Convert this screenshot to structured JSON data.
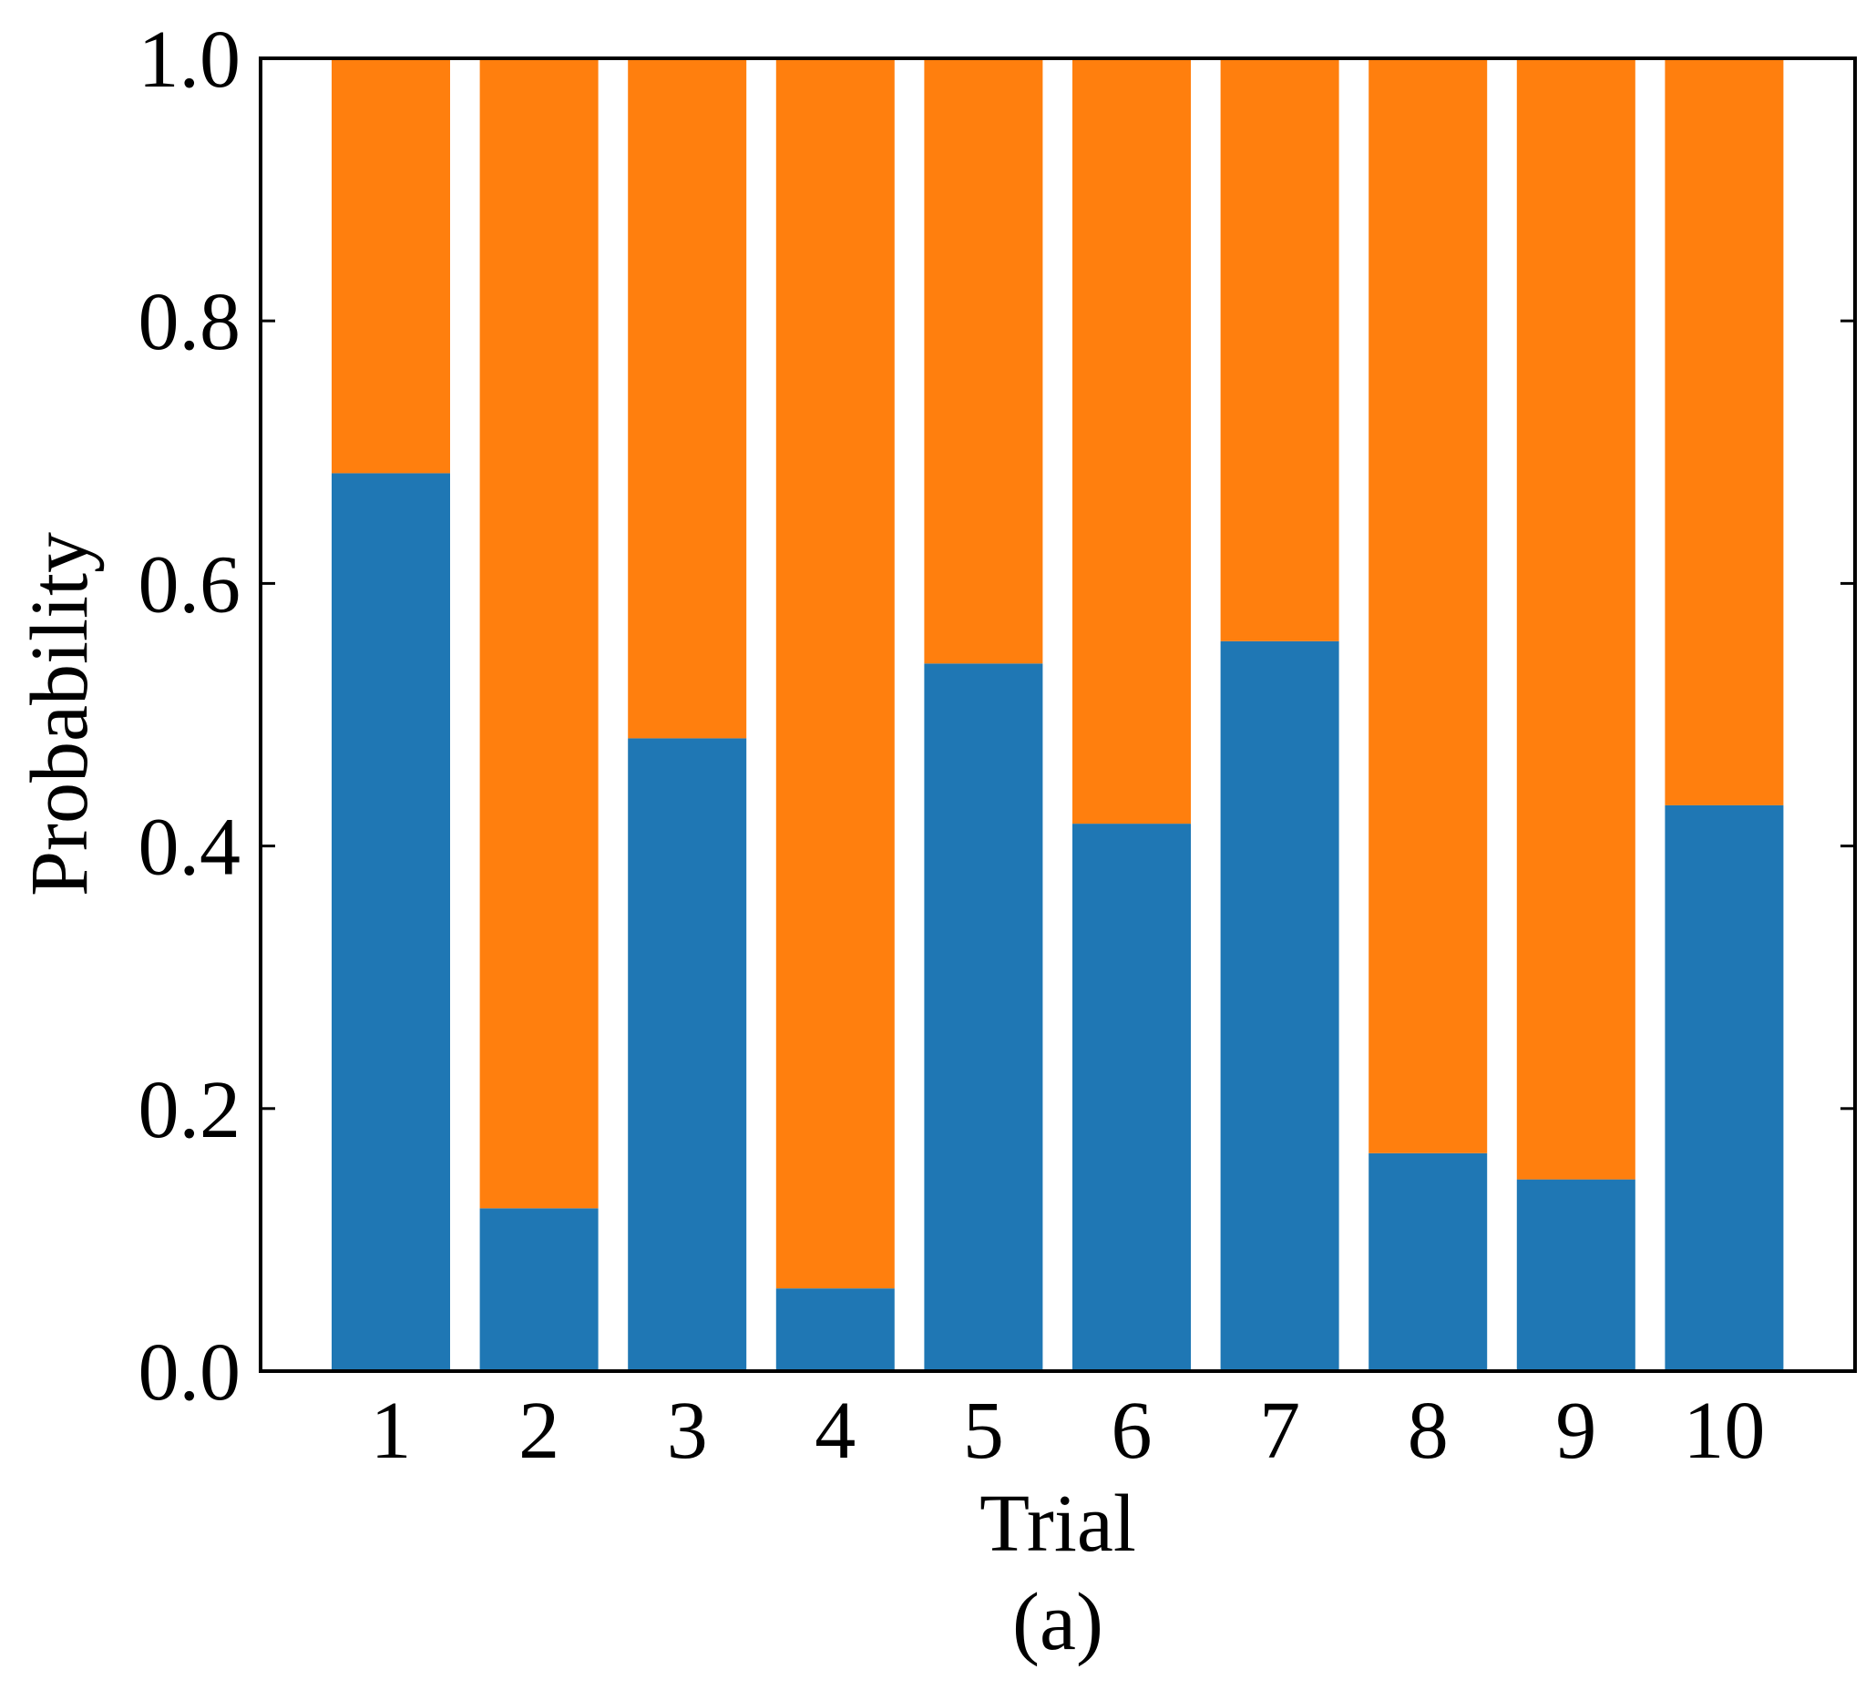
{
  "chart_data": {
    "type": "bar",
    "stacked": true,
    "categories": [
      "1",
      "2",
      "3",
      "4",
      "5",
      "6",
      "7",
      "8",
      "9",
      "10"
    ],
    "series": [
      {
        "color": "#1f77b4",
        "values": [
          0.684,
          0.124,
          0.482,
          0.063,
          0.539,
          0.417,
          0.556,
          0.166,
          0.146,
          0.431
        ]
      },
      {
        "color": "#ff7f0e",
        "values": [
          0.316,
          0.876,
          0.518,
          0.937,
          0.461,
          0.583,
          0.444,
          0.834,
          0.854,
          0.569
        ]
      }
    ],
    "xlabel": "Trial",
    "ylabel": "Probability",
    "ylim": [
      0,
      1.0
    ],
    "yticks": [
      "0.0",
      "0.2",
      "0.4",
      "0.6",
      "0.8",
      "1.0"
    ],
    "ytick_values": [
      0,
      0.2,
      0.4,
      0.6,
      0.8,
      1.0
    ],
    "caption": "(a)",
    "grid": false
  }
}
